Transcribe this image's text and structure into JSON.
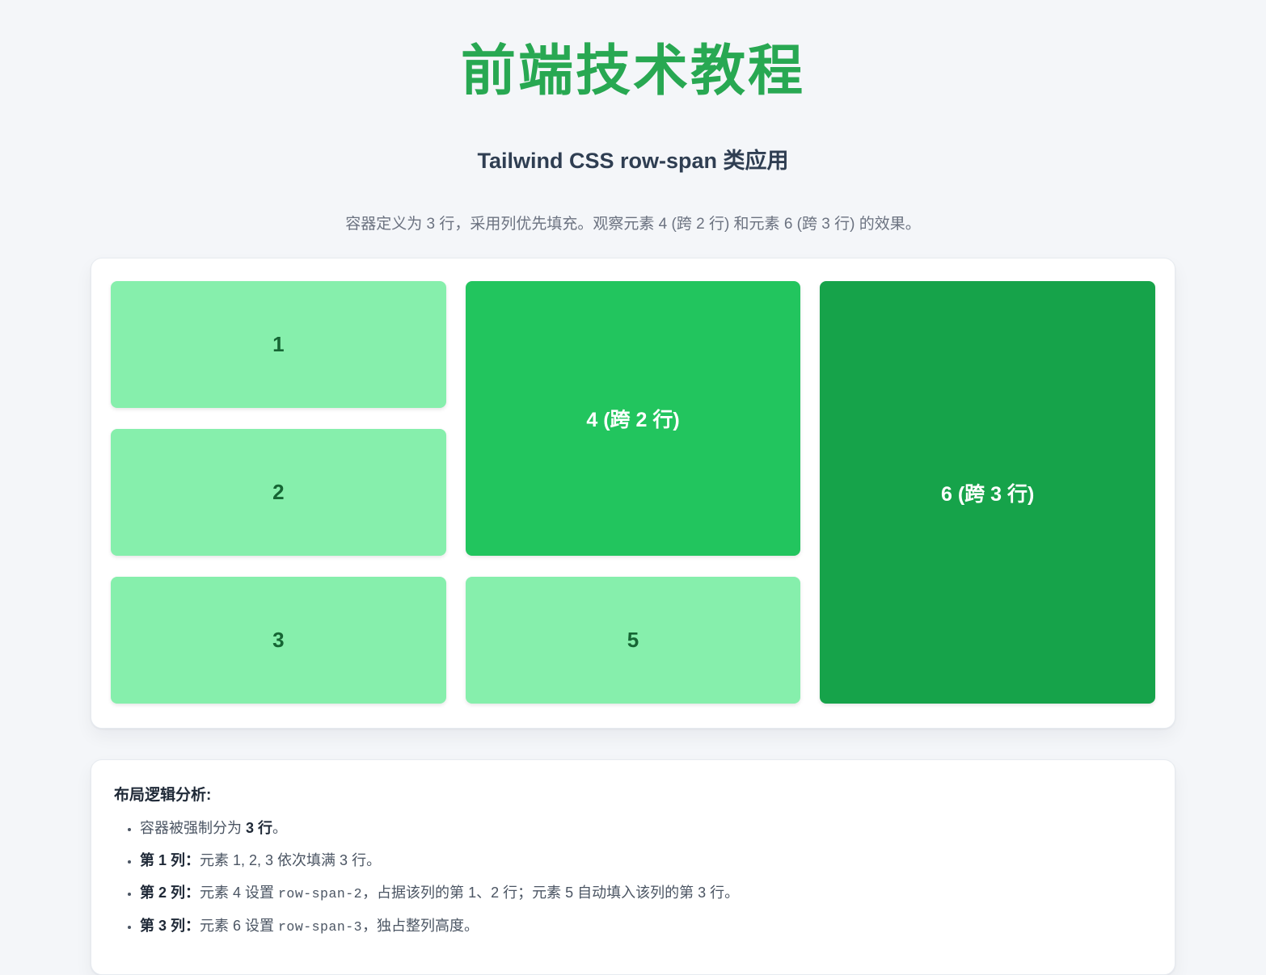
{
  "header": {
    "title": "前端技术教程",
    "subtitle": "Tailwind CSS row-span 类应用",
    "description": "容器定义为 3 行，采用列优先填充。观察元素 4 (跨 2 行) 和元素 6 (跨 3 行) 的效果。"
  },
  "grid": {
    "cells": [
      {
        "label": "1",
        "tone": "light",
        "row_span": 1
      },
      {
        "label": "2",
        "tone": "light",
        "row_span": 1
      },
      {
        "label": "3",
        "tone": "light",
        "row_span": 1
      },
      {
        "label": "4 (跨 2 行)",
        "tone": "medium",
        "row_span": 2
      },
      {
        "label": "5",
        "tone": "light",
        "row_span": 1
      },
      {
        "label": "6 (跨 3 行)",
        "tone": "dark",
        "row_span": 3
      }
    ]
  },
  "analysis": {
    "heading": "布局逻辑分析:",
    "bullets": [
      {
        "pre": "容器被强制分为 ",
        "bold": "3 行",
        "post": "。"
      },
      {
        "bold": "第 1 列：",
        "text": "元素 1, 2, 3 依次填满 3 行。"
      },
      {
        "bold": "第 2 列：",
        "pre": "元素 4 设置 ",
        "code": "row-span-2",
        "post": "，占据该列的第 1、2 行；元素 5 自动填入该列的第 3 行。"
      },
      {
        "bold": "第 3 列：",
        "pre": "元素 6 设置 ",
        "code": "row-span-3",
        "post": "，独占整列高度。"
      }
    ]
  },
  "colors": {
    "page_bg": "#f4f6f9",
    "card_bg": "#ffffff",
    "card_border": "#e7ebf0",
    "title_green": "#28a852",
    "subtitle_text": "#2f3e52",
    "description_text": "#6b7280",
    "cell_light": "#86efac",
    "cell_medium": "#22c55e",
    "cell_dark": "#16a34a",
    "cell_light_text": "#166534",
    "cell_span_text": "#ffffff",
    "body_text": "#4b5563",
    "bold_text": "#1f2937"
  }
}
